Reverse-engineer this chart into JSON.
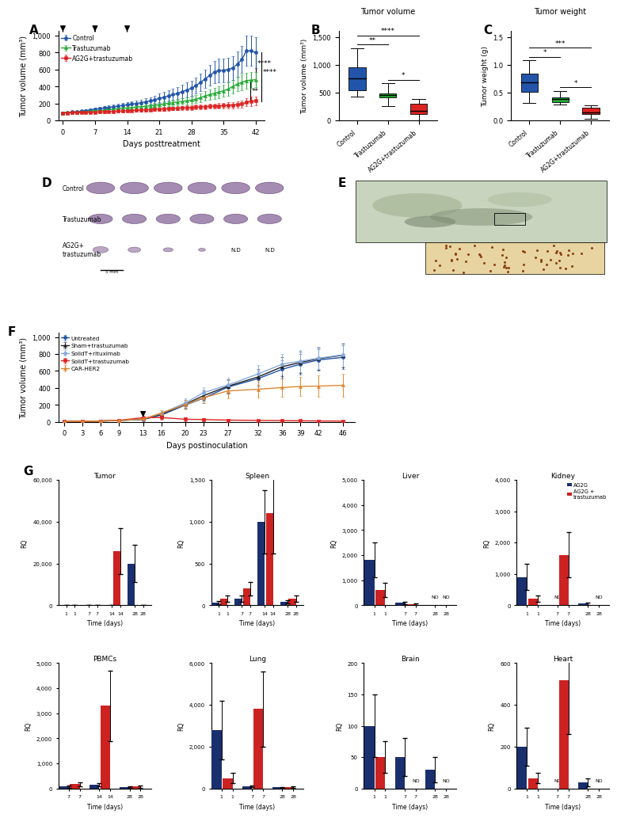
{
  "panel_A": {
    "days": [
      0,
      1,
      2,
      3,
      4,
      5,
      6,
      7,
      8,
      9,
      10,
      11,
      12,
      13,
      14,
      15,
      16,
      17,
      18,
      19,
      20,
      21,
      22,
      23,
      24,
      25,
      26,
      27,
      28,
      29,
      30,
      31,
      32,
      33,
      34,
      35,
      36,
      37,
      38,
      39,
      40,
      41,
      42
    ],
    "control_mean": [
      90,
      95,
      100,
      105,
      110,
      118,
      125,
      135,
      140,
      148,
      155,
      163,
      170,
      178,
      185,
      193,
      200,
      210,
      220,
      230,
      245,
      260,
      275,
      290,
      305,
      320,
      340,
      360,
      380,
      410,
      450,
      490,
      530,
      570,
      590,
      590,
      600,
      620,
      660,
      720,
      820,
      820,
      800
    ],
    "control_err": [
      10,
      10,
      12,
      12,
      14,
      15,
      16,
      18,
      18,
      20,
      22,
      24,
      25,
      28,
      30,
      32,
      35,
      38,
      42,
      45,
      50,
      55,
      60,
      65,
      70,
      75,
      80,
      85,
      90,
      95,
      100,
      110,
      120,
      130,
      140,
      140,
      140,
      140,
      150,
      160,
      180,
      180,
      180
    ],
    "trast_mean": [
      90,
      92,
      95,
      98,
      100,
      105,
      110,
      115,
      118,
      122,
      127,
      132,
      137,
      143,
      148,
      153,
      158,
      163,
      168,
      173,
      180,
      187,
      195,
      203,
      210,
      218,
      225,
      233,
      240,
      250,
      270,
      290,
      305,
      320,
      335,
      350,
      370,
      400,
      430,
      450,
      470,
      475,
      480
    ],
    "trast_err": [
      10,
      10,
      10,
      11,
      12,
      13,
      14,
      14,
      15,
      16,
      17,
      18,
      19,
      20,
      21,
      22,
      23,
      24,
      25,
      26,
      28,
      30,
      32,
      34,
      36,
      38,
      40,
      42,
      44,
      47,
      52,
      57,
      60,
      65,
      68,
      70,
      75,
      80,
      85,
      90,
      95,
      95,
      90
    ],
    "ag2g_mean": [
      90,
      90,
      92,
      93,
      94,
      95,
      97,
      98,
      100,
      102,
      104,
      107,
      110,
      112,
      115,
      117,
      120,
      122,
      125,
      127,
      130,
      133,
      136,
      139,
      142,
      145,
      148,
      150,
      153,
      157,
      160,
      163,
      167,
      170,
      172,
      175,
      178,
      182,
      188,
      195,
      215,
      225,
      230
    ],
    "ag2g_err": [
      10,
      10,
      10,
      10,
      11,
      11,
      12,
      12,
      12,
      13,
      13,
      14,
      14,
      15,
      15,
      16,
      16,
      17,
      17,
      18,
      18,
      19,
      20,
      21,
      22,
      23,
      24,
      25,
      26,
      27,
      28,
      29,
      30,
      31,
      32,
      33,
      35,
      37,
      40,
      42,
      48,
      52,
      55
    ],
    "arrow_days": [
      0,
      7,
      14
    ],
    "ylim": [
      0,
      1050
    ],
    "yticks": [
      0,
      200,
      400,
      600,
      800,
      1000
    ],
    "ytick_labels": [
      "0",
      "200",
      "400",
      "600",
      "800",
      "1,000"
    ],
    "ylabel": "Tumor volume (mm³)",
    "xlabel": "Days posttreatment",
    "xticks": [
      0,
      7,
      14,
      21,
      28,
      35,
      42
    ],
    "colors": {
      "control": "#2255aa",
      "trast": "#22aa33",
      "ag2g": "#dd2222"
    }
  },
  "panel_B": {
    "groups": [
      "Control",
      "Trastuzumab",
      "AG2G+trastuzumab"
    ],
    "colors": [
      "#2255aa",
      "#22aa33",
      "#dd2222"
    ],
    "medians": [
      760,
      460,
      175
    ],
    "q1": [
      540,
      420,
      110
    ],
    "q3": [
      950,
      490,
      300
    ],
    "whisker_low": [
      430,
      260,
      5
    ],
    "whisker_high": [
      1300,
      665,
      390
    ],
    "title": "Tumor volume",
    "ylabel": "Tumor volume (mm³)",
    "ylim": [
      0,
      1600
    ],
    "yticks": [
      0,
      500,
      1000,
      1500
    ],
    "ytick_labels": [
      "0",
      "500",
      "1,000",
      "1,500"
    ],
    "sig": [
      [
        "Control",
        "Trastuzumab",
        "**"
      ],
      [
        "Trastuzumab",
        "AG2G+trastuzumab",
        "*"
      ],
      [
        "Control",
        "AG2G+trastuzumab",
        "****"
      ]
    ]
  },
  "panel_C": {
    "groups": [
      "Control",
      "Trastuzumab",
      "AG2G+trastuzumab"
    ],
    "colors": [
      "#2255aa",
      "#22aa33",
      "#dd2222"
    ],
    "medians": [
      0.68,
      0.38,
      0.15
    ],
    "q1": [
      0.52,
      0.33,
      0.11
    ],
    "q3": [
      0.84,
      0.42,
      0.23
    ],
    "whisker_low": [
      0.32,
      0.28,
      0.03
    ],
    "whisker_high": [
      1.08,
      0.53,
      0.27
    ],
    "title": "Tumor weight",
    "ylabel": "Tumor weight (g)",
    "ylim": [
      0.0,
      1.6
    ],
    "yticks": [
      0.0,
      0.5,
      1.0,
      1.5
    ],
    "ytick_labels": [
      "0.0",
      "0.5",
      "1.0",
      "1.5"
    ],
    "sig": [
      [
        "Control",
        "Trastuzumab",
        "*"
      ],
      [
        "Trastuzumab",
        "AG2G+trastuzumab",
        "*"
      ],
      [
        "Control",
        "AG2G+trastuzumab",
        "***"
      ]
    ]
  },
  "panel_F": {
    "days": [
      0,
      3,
      6,
      9,
      13,
      16,
      20,
      23,
      27,
      32,
      36,
      39,
      42,
      46
    ],
    "untreated_mean": [
      5,
      8,
      12,
      18,
      30,
      80,
      200,
      280,
      410,
      510,
      620,
      680,
      730,
      760
    ],
    "untreated_err": [
      2,
      3,
      5,
      6,
      10,
      20,
      40,
      55,
      80,
      90,
      110,
      120,
      130,
      140
    ],
    "sham_mean": [
      5,
      7,
      11,
      17,
      32,
      90,
      210,
      310,
      420,
      530,
      650,
      700,
      745,
      785
    ],
    "sham_err": [
      2,
      3,
      5,
      7,
      12,
      25,
      45,
      60,
      85,
      95,
      115,
      125,
      130,
      140
    ],
    "solidT_rit_mean": [
      5,
      8,
      12,
      18,
      35,
      100,
      225,
      345,
      435,
      565,
      680,
      715,
      750,
      790
    ],
    "solidT_rit_err": [
      2,
      3,
      5,
      8,
      15,
      30,
      50,
      65,
      90,
      100,
      120,
      130,
      130,
      140
    ],
    "solidT_trast_mean": [
      5,
      8,
      12,
      20,
      50,
      52,
      32,
      28,
      22,
      18,
      16,
      14,
      12,
      10
    ],
    "solidT_trast_err": [
      2,
      3,
      5,
      8,
      20,
      25,
      20,
      15,
      12,
      10,
      8,
      6,
      5,
      4
    ],
    "carHER2_mean": [
      5,
      8,
      12,
      18,
      35,
      105,
      205,
      285,
      365,
      385,
      405,
      418,
      422,
      432
    ],
    "carHER2_err": [
      2,
      3,
      5,
      8,
      15,
      35,
      55,
      65,
      85,
      95,
      105,
      115,
      125,
      135
    ],
    "arrow_day": 13,
    "ylim": [
      0,
      1050
    ],
    "yticks": [
      0,
      200,
      400,
      600,
      800,
      1000
    ],
    "ytick_labels": [
      "0",
      "200",
      "400",
      "600",
      "800",
      "1,000"
    ],
    "ylabel": "Tumor volume (mm³)",
    "xlabel": "Days postinoculation",
    "xticks": [
      0,
      3,
      6,
      9,
      13,
      16,
      20,
      23,
      27,
      32,
      36,
      39,
      42,
      46
    ],
    "colors": {
      "untreated": "#2255aa",
      "sham": "#222222",
      "solidT_rit": "#88aadd",
      "solidT_trast": "#dd2222",
      "carHER2": "#dd8833"
    }
  },
  "panel_G": {
    "organs_top": [
      "Tumor",
      "Spleen",
      "Liver",
      "Kidney"
    ],
    "organs_bot": [
      "PBMCs",
      "Lung",
      "Brain",
      "Heart"
    ],
    "timepoints": {
      "Tumor": [
        1,
        7,
        14,
        28
      ],
      "Spleen": [
        1,
        7,
        14,
        28
      ],
      "Liver": [
        1,
        7,
        28
      ],
      "Kidney": [
        1,
        7,
        28
      ],
      "PBMCs": [
        7,
        14,
        28
      ],
      "Lung": [
        1,
        7,
        28
      ],
      "Brain": [
        1,
        7,
        28
      ],
      "Heart": [
        1,
        7,
        28
      ]
    },
    "ag2g": {
      "Tumor": [
        50,
        80,
        200,
        20000
      ],
      "Spleen": [
        30,
        80,
        1000,
        40
      ],
      "Liver": [
        1800,
        100,
        50
      ],
      "Kidney": [
        900,
        100,
        50
      ],
      "PBMCs": [
        80,
        150,
        50
      ],
      "Lung": [
        2800,
        100,
        50
      ],
      "Brain": [
        100,
        50,
        30
      ],
      "Heart": [
        200,
        30,
        30
      ]
    },
    "ag2g_trast": {
      "Tumor": [
        50,
        200,
        26000,
        50
      ],
      "Spleen": [
        80,
        200,
        1100,
        80
      ],
      "Liver": [
        600,
        50,
        50
      ],
      "Kidney": [
        200,
        1600,
        50
      ],
      "PBMCs": [
        180,
        3300,
        80
      ],
      "Lung": [
        500,
        3800,
        80
      ],
      "Brain": [
        50,
        50,
        40
      ],
      "Heart": [
        50,
        520,
        30
      ]
    },
    "ag2g_err": {
      "Tumor": [
        30,
        40,
        80,
        9000
      ],
      "Spleen": [
        20,
        40,
        380,
        20
      ],
      "Liver": [
        700,
        50,
        30
      ],
      "Kidney": [
        420,
        50,
        30
      ],
      "PBMCs": [
        40,
        70,
        30
      ],
      "Lung": [
        1400,
        50,
        30
      ],
      "Brain": [
        50,
        30,
        20
      ],
      "Heart": [
        90,
        20,
        20
      ]
    },
    "ag2g_trast_err": {
      "Tumor": [
        30,
        80,
        11000,
        30
      ],
      "Spleen": [
        40,
        80,
        480,
        40
      ],
      "Liver": [
        280,
        30,
        30
      ],
      "Kidney": [
        100,
        720,
        30
      ],
      "PBMCs": [
        80,
        1400,
        40
      ],
      "Lung": [
        240,
        1800,
        40
      ],
      "Brain": [
        25,
        25,
        25
      ],
      "Heart": [
        25,
        260,
        20
      ]
    },
    "ylims": {
      "Tumor": [
        0,
        60000
      ],
      "Spleen": [
        0,
        1500
      ],
      "Liver": [
        0,
        5000
      ],
      "Kidney": [
        0,
        4000
      ],
      "PBMCs": [
        0,
        5000
      ],
      "Lung": [
        0,
        6000
      ],
      "Brain": [
        0,
        200
      ],
      "Heart": [
        0,
        600
      ]
    },
    "yticks": {
      "Tumor": [
        0,
        20000,
        40000,
        60000
      ],
      "Spleen": [
        0,
        500,
        1000,
        1500
      ],
      "Liver": [
        0,
        1000,
        2000,
        3000,
        4000,
        5000
      ],
      "Kidney": [
        0,
        1000,
        2000,
        3000,
        4000
      ],
      "PBMCs": [
        0,
        1000,
        2000,
        3000,
        4000,
        5000
      ],
      "Lung": [
        0,
        2000,
        4000,
        6000
      ],
      "Brain": [
        0,
        50,
        100,
        150,
        200
      ],
      "Heart": [
        0,
        200,
        400,
        600
      ]
    },
    "ytick_labels": {
      "Tumor": [
        "0",
        "20,000",
        "40,000",
        "60,000"
      ],
      "Spleen": [
        "0",
        "500",
        "1,000",
        "1,500"
      ],
      "Liver": [
        "0",
        "1,000",
        "2,000",
        "3,000",
        "4,000",
        "5,000"
      ],
      "Kidney": [
        "0",
        "1,000",
        "2,000",
        "3,000",
        "4,000"
      ],
      "PBMCs": [
        "0",
        "1,000",
        "2,000",
        "3,000",
        "4,000",
        "5,000"
      ],
      "Lung": [
        "0",
        "2,000",
        "4,000",
        "6,000"
      ],
      "Brain": [
        "0",
        "50",
        "100",
        "150",
        "200"
      ],
      "Heart": [
        "0",
        "200",
        "400",
        "600"
      ]
    },
    "nd_organs": {
      "Liver": {
        "ag2g": [
          false,
          false,
          true
        ],
        "trast": [
          false,
          false,
          true
        ]
      },
      "Kidney": {
        "ag2g": [
          false,
          true,
          false
        ],
        "trast": [
          false,
          false,
          true
        ]
      },
      "Brain": {
        "ag2g": [
          false,
          false,
          false
        ],
        "trast": [
          false,
          true,
          true
        ]
      },
      "Heart": {
        "ag2g": [
          false,
          true,
          false
        ],
        "trast": [
          false,
          false,
          true
        ]
      }
    },
    "colors": {
      "ag2g": "#1a2f6e",
      "ag2g_trast": "#cc2222"
    }
  }
}
